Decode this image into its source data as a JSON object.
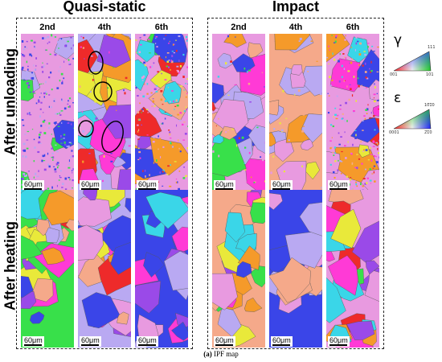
{
  "groups": {
    "quasi_static": "Quasi-static",
    "impact": "Impact"
  },
  "columns": [
    "2nd",
    "4th",
    "6th"
  ],
  "rows": {
    "unloading": "After unloading",
    "heating": "After heating"
  },
  "scale_bar": "60μm",
  "legend": {
    "gamma_symbol": "γ",
    "epsilon_symbol": "ε",
    "gamma_corners": {
      "top": "111",
      "left": "001",
      "right": "101"
    },
    "epsilon_corners": {
      "top": "10̅1̅0",
      "left": "0001",
      "right": "2̅1̅0"
    }
  },
  "caption": {
    "label": "(a)",
    "text": " IPF map"
  },
  "colors": {
    "pink": "#e89ae0",
    "magenta": "#ff3ad6",
    "blue": "#3a45e8",
    "green": "#38e04a",
    "yellow": "#e9e93a",
    "red": "#ee2a2a",
    "cyan": "#3ad6e8",
    "orange": "#f59a2a",
    "purple": "#9a4ae8",
    "lavender": "#b9a9f2",
    "salmon": "#f5a98a"
  }
}
